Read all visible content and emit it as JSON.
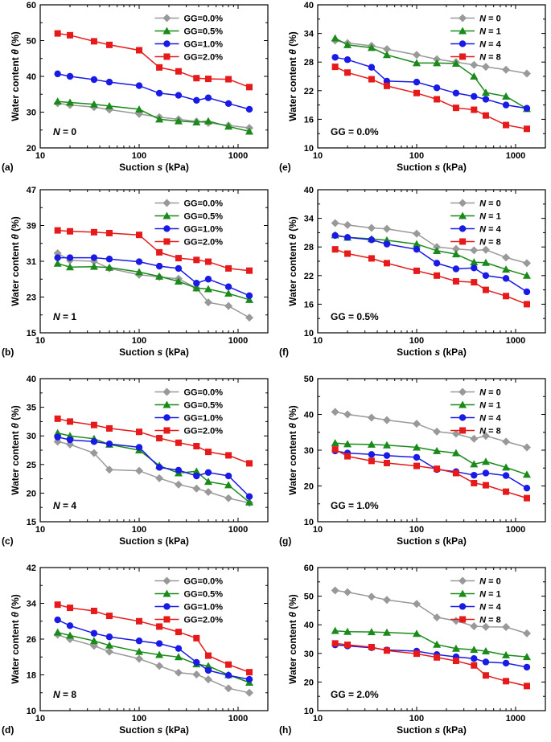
{
  "figure": {
    "xlabel_prefix": "Suction ",
    "xlabel_var": "s",
    "xlabel_unit": " (kPa)",
    "ylabel_prefix": "Water content ",
    "ylabel_var": "θ",
    "ylabel_unit": " (%)",
    "x_ticks": [
      "10",
      "100",
      "1000"
    ]
  },
  "colors": {
    "GG=0.0%": "#999999",
    "GG=0.5%": "#1a8a1a",
    "GG=1.0%": "#1a1ae6",
    "GG=2.0%": "#e61a1a",
    "N = 0": "#999999",
    "N = 1": "#1a8a1a",
    "N = 4": "#1a1ae6",
    "N = 8": "#e61a1a"
  },
  "chart_data": [
    {
      "type": "line",
      "panel": "(a)",
      "annotation": "N = 0",
      "xscale": "log",
      "xlim": [
        10,
        2000
      ],
      "ylim": [
        20,
        60
      ],
      "yticks": [
        20,
        30,
        40,
        50,
        60
      ],
      "x": [
        15,
        20,
        35,
        50,
        100,
        160,
        250,
        380,
        500,
        800,
        1300
      ],
      "series": [
        {
          "name": "GG=0.0%",
          "marker": "diamond",
          "values": [
            32.5,
            32.0,
            31.4,
            30.7,
            29.5,
            28.6,
            28.0,
            27.4,
            27.0,
            26.3,
            25.6
          ]
        },
        {
          "name": "GG=0.5%",
          "marker": "triangle",
          "values": [
            33.0,
            32.7,
            32.2,
            31.7,
            30.8,
            28.0,
            27.5,
            27.2,
            27.5,
            26.0,
            24.6
          ]
        },
        {
          "name": "GG=1.0%",
          "marker": "circle",
          "values": [
            40.7,
            40.0,
            39.1,
            38.4,
            37.4,
            35.3,
            34.7,
            33.3,
            34.0,
            32.4,
            30.8
          ]
        },
        {
          "name": "GG=2.0%",
          "marker": "square",
          "values": [
            52.0,
            51.5,
            49.8,
            48.8,
            47.3,
            42.5,
            41.4,
            39.5,
            39.3,
            39.2,
            37.0
          ]
        }
      ]
    },
    {
      "type": "line",
      "panel": "(b)",
      "annotation": "N = 1",
      "xscale": "log",
      "xlim": [
        10,
        2000
      ],
      "ylim": [
        15,
        47
      ],
      "yticks": [
        15,
        23,
        31,
        39,
        47
      ],
      "x": [
        15,
        20,
        35,
        50,
        100,
        160,
        250,
        380,
        500,
        800,
        1300
      ],
      "series": [
        {
          "name": "GG=0.0%",
          "marker": "diamond",
          "values": [
            32.8,
            31.2,
            31.0,
            29.4,
            28.0,
            27.5,
            27.1,
            25.0,
            21.8,
            21.0,
            18.4
          ]
        },
        {
          "name": "GG=0.5%",
          "marker": "triangle",
          "values": [
            30.5,
            29.7,
            29.8,
            29.6,
            28.6,
            27.6,
            26.5,
            25.0,
            24.8,
            23.8,
            22.4
          ]
        },
        {
          "name": "GG=1.0%",
          "marker": "circle",
          "values": [
            31.8,
            31.8,
            31.8,
            31.5,
            30.9,
            29.9,
            29.4,
            26.1,
            27.0,
            25.3,
            23.3
          ]
        },
        {
          "name": "GG=2.0%",
          "marker": "square",
          "values": [
            37.9,
            37.7,
            37.5,
            37.3,
            36.9,
            33.0,
            31.7,
            31.3,
            30.9,
            29.4,
            28.9
          ]
        }
      ]
    },
    {
      "type": "line",
      "panel": "(c)",
      "annotation": "N = 4",
      "xscale": "log",
      "xlim": [
        10,
        2000
      ],
      "ylim": [
        15,
        40
      ],
      "yticks": [
        15,
        20,
        25,
        30,
        35,
        40
      ],
      "x": [
        15,
        20,
        35,
        50,
        100,
        160,
        250,
        380,
        500,
        800,
        1300
      ],
      "series": [
        {
          "name": "GG=0.0%",
          "marker": "diamond",
          "values": [
            29.0,
            28.5,
            27.0,
            24.1,
            23.9,
            22.6,
            21.5,
            20.8,
            20.2,
            19.1,
            18.3
          ]
        },
        {
          "name": "GG=0.5%",
          "marker": "triangle",
          "values": [
            30.5,
            30.0,
            29.5,
            28.5,
            27.5,
            24.8,
            23.5,
            23.8,
            22.0,
            21.4,
            18.4
          ]
        },
        {
          "name": "GG=1.0%",
          "marker": "circle",
          "values": [
            29.8,
            29.3,
            29.0,
            28.6,
            28.0,
            24.5,
            24.0,
            23.0,
            23.6,
            23.0,
            19.4
          ]
        },
        {
          "name": "GG=2.0%",
          "marker": "square",
          "values": [
            33.0,
            32.5,
            31.9,
            31.3,
            30.7,
            29.6,
            28.8,
            28.2,
            27.2,
            26.6,
            25.2
          ]
        }
      ]
    },
    {
      "type": "line",
      "panel": "(d)",
      "annotation": "N = 8",
      "xscale": "log",
      "xlim": [
        10,
        2000
      ],
      "ylim": [
        10,
        42
      ],
      "yticks": [
        10,
        18,
        26,
        34,
        42
      ],
      "x": [
        15,
        20,
        35,
        50,
        100,
        160,
        250,
        380,
        500,
        800,
        1300
      ],
      "series": [
        {
          "name": "GG=0.0%",
          "marker": "diamond",
          "values": [
            27.0,
            26.0,
            24.5,
            23.2,
            21.6,
            20.0,
            18.5,
            18.1,
            17.0,
            15.0,
            14.0
          ]
        },
        {
          "name": "GG=0.5%",
          "marker": "triangle",
          "values": [
            27.5,
            26.8,
            25.6,
            24.6,
            23.2,
            22.5,
            22.0,
            20.4,
            20.0,
            18.0,
            16.3
          ]
        },
        {
          "name": "GG=1.0%",
          "marker": "circle",
          "values": [
            30.3,
            29.0,
            27.3,
            26.5,
            25.6,
            25.0,
            23.9,
            20.8,
            19.0,
            17.9,
            17.0
          ]
        },
        {
          "name": "GG=2.0%",
          "marker": "square",
          "values": [
            33.7,
            33.0,
            32.3,
            31.2,
            30.0,
            28.8,
            27.6,
            26.2,
            22.3,
            20.3,
            18.6
          ]
        }
      ]
    },
    {
      "type": "line",
      "panel": "(e)",
      "annotation": "GG = 0.0%",
      "xscale": "log",
      "xlim": [
        10,
        2000
      ],
      "ylim": [
        10,
        40
      ],
      "yticks": [
        10,
        16,
        22,
        28,
        34,
        40
      ],
      "x": [
        15,
        20,
        35,
        50,
        100,
        160,
        250,
        380,
        500,
        800,
        1300
      ],
      "series": [
        {
          "name": "N = 0",
          "marker": "diamond",
          "values": [
            32.5,
            32.0,
            31.4,
            30.7,
            29.5,
            28.6,
            28.0,
            27.4,
            27.0,
            26.4,
            25.6
          ]
        },
        {
          "name": "N = 1",
          "marker": "triangle",
          "values": [
            33.0,
            31.6,
            31.0,
            29.5,
            27.8,
            27.8,
            27.7,
            25.0,
            21.6,
            20.8,
            18.2
          ]
        },
        {
          "name": "N = 4",
          "marker": "circle",
          "values": [
            29.0,
            28.5,
            26.9,
            24.0,
            23.8,
            22.6,
            21.5,
            20.8,
            20.2,
            19.0,
            18.3
          ]
        },
        {
          "name": "N = 8",
          "marker": "square",
          "values": [
            27.0,
            25.8,
            24.4,
            23.0,
            21.5,
            20.2,
            18.4,
            18.0,
            16.8,
            14.8,
            14.0
          ]
        }
      ]
    },
    {
      "type": "line",
      "panel": "(f)",
      "annotation": "GG = 0.5%",
      "xscale": "log",
      "xlim": [
        10,
        2000
      ],
      "ylim": [
        10,
        40
      ],
      "yticks": [
        10,
        16,
        22,
        28,
        34,
        40
      ],
      "x": [
        15,
        20,
        35,
        50,
        100,
        160,
        250,
        380,
        500,
        800,
        1300
      ],
      "series": [
        {
          "name": "N = 0",
          "marker": "diamond",
          "values": [
            33.0,
            32.6,
            32.0,
            31.8,
            30.8,
            28.0,
            27.6,
            27.3,
            27.4,
            25.8,
            24.6
          ]
        },
        {
          "name": "N = 1",
          "marker": "triangle",
          "values": [
            30.5,
            30.0,
            29.7,
            29.4,
            28.6,
            27.2,
            26.5,
            24.8,
            24.7,
            23.3,
            22.0
          ]
        },
        {
          "name": "N = 4",
          "marker": "circle",
          "values": [
            30.4,
            30.0,
            29.5,
            28.6,
            27.5,
            24.6,
            23.4,
            23.6,
            22.0,
            21.4,
            18.6
          ]
        },
        {
          "name": "N = 8",
          "marker": "square",
          "values": [
            27.5,
            26.6,
            25.6,
            24.6,
            23.0,
            22.0,
            20.8,
            20.6,
            19.0,
            17.7,
            16.0
          ]
        }
      ]
    },
    {
      "type": "line",
      "panel": "(g)",
      "annotation": "GG = 1.0%",
      "xscale": "log",
      "xlim": [
        10,
        2000
      ],
      "ylim": [
        10,
        50
      ],
      "yticks": [
        10,
        20,
        30,
        40,
        50
      ],
      "x": [
        15,
        20,
        35,
        50,
        100,
        160,
        250,
        380,
        500,
        800,
        1300
      ],
      "series": [
        {
          "name": "N = 0",
          "marker": "diamond",
          "values": [
            40.7,
            40.0,
            39.1,
            38.4,
            37.4,
            35.2,
            34.6,
            33.2,
            34.0,
            32.4,
            30.8
          ]
        },
        {
          "name": "N = 1",
          "marker": "triangle",
          "values": [
            32.0,
            31.7,
            31.6,
            31.4,
            30.8,
            29.8,
            29.2,
            26.1,
            26.8,
            25.2,
            23.2
          ]
        },
        {
          "name": "N = 4",
          "marker": "circle",
          "values": [
            29.8,
            29.2,
            28.8,
            28.5,
            28.0,
            24.6,
            24.0,
            23.0,
            23.6,
            22.9,
            19.4
          ]
        },
        {
          "name": "N = 8",
          "marker": "square",
          "values": [
            30.2,
            28.3,
            27.0,
            26.4,
            25.6,
            24.8,
            23.6,
            20.8,
            20.2,
            18.4,
            16.6
          ]
        }
      ]
    },
    {
      "type": "line",
      "panel": "(h)",
      "annotation": "GG = 2.0%",
      "xscale": "log",
      "xlim": [
        10,
        2000
      ],
      "ylim": [
        10,
        60
      ],
      "yticks": [
        10,
        20,
        30,
        40,
        50,
        60
      ],
      "x": [
        15,
        20,
        35,
        50,
        100,
        160,
        250,
        380,
        500,
        800,
        1300
      ],
      "series": [
        {
          "name": "N = 0",
          "marker": "diamond",
          "values": [
            52.0,
            51.4,
            49.8,
            48.7,
            47.3,
            42.6,
            41.4,
            39.5,
            39.3,
            39.2,
            37.0
          ]
        },
        {
          "name": "N = 1",
          "marker": "triangle",
          "values": [
            37.9,
            37.6,
            37.5,
            37.3,
            36.9,
            33.1,
            31.7,
            31.3,
            30.8,
            29.4,
            28.8
          ]
        },
        {
          "name": "N = 4",
          "marker": "circle",
          "values": [
            33.0,
            32.6,
            32.0,
            31.2,
            30.8,
            29.6,
            28.8,
            28.2,
            27.0,
            26.6,
            25.2
          ]
        },
        {
          "name": "N = 8",
          "marker": "square",
          "values": [
            33.5,
            33.0,
            32.2,
            31.0,
            29.9,
            28.6,
            27.4,
            25.8,
            22.3,
            20.3,
            18.6
          ]
        }
      ]
    }
  ]
}
